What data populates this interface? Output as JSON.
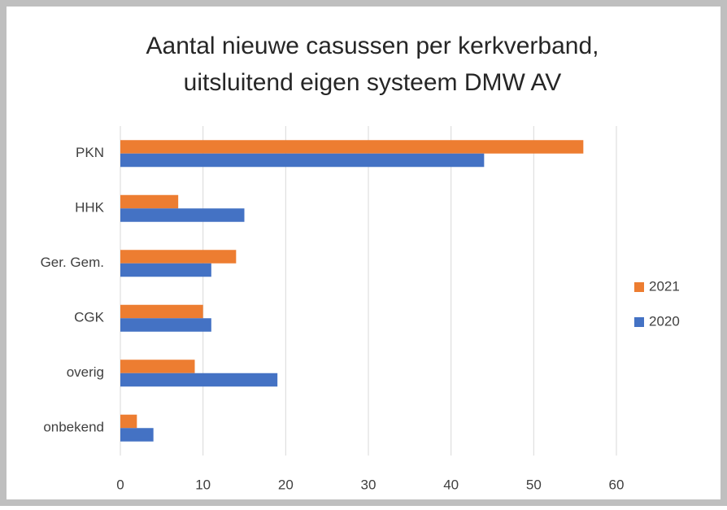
{
  "chart_data": {
    "type": "bar",
    "orientation": "horizontal",
    "title": [
      "Aantal nieuwe casussen per kerkverband,",
      "uitsluitend eigen systeem DMW AV"
    ],
    "categories": [
      "PKN",
      "HHK",
      "Ger. Gem.",
      "CGK",
      "overig",
      "onbekend"
    ],
    "series": [
      {
        "name": "2021",
        "color": "#ed7d31",
        "values": [
          56,
          7,
          14,
          10,
          9,
          2
        ]
      },
      {
        "name": "2020",
        "color": "#4472c4",
        "values": [
          44,
          15,
          11,
          11,
          19,
          4
        ]
      }
    ],
    "xlim": [
      0,
      60
    ],
    "xticks": [
      0,
      10,
      20,
      30,
      40,
      50,
      60
    ],
    "grid": true,
    "legend": "right"
  }
}
